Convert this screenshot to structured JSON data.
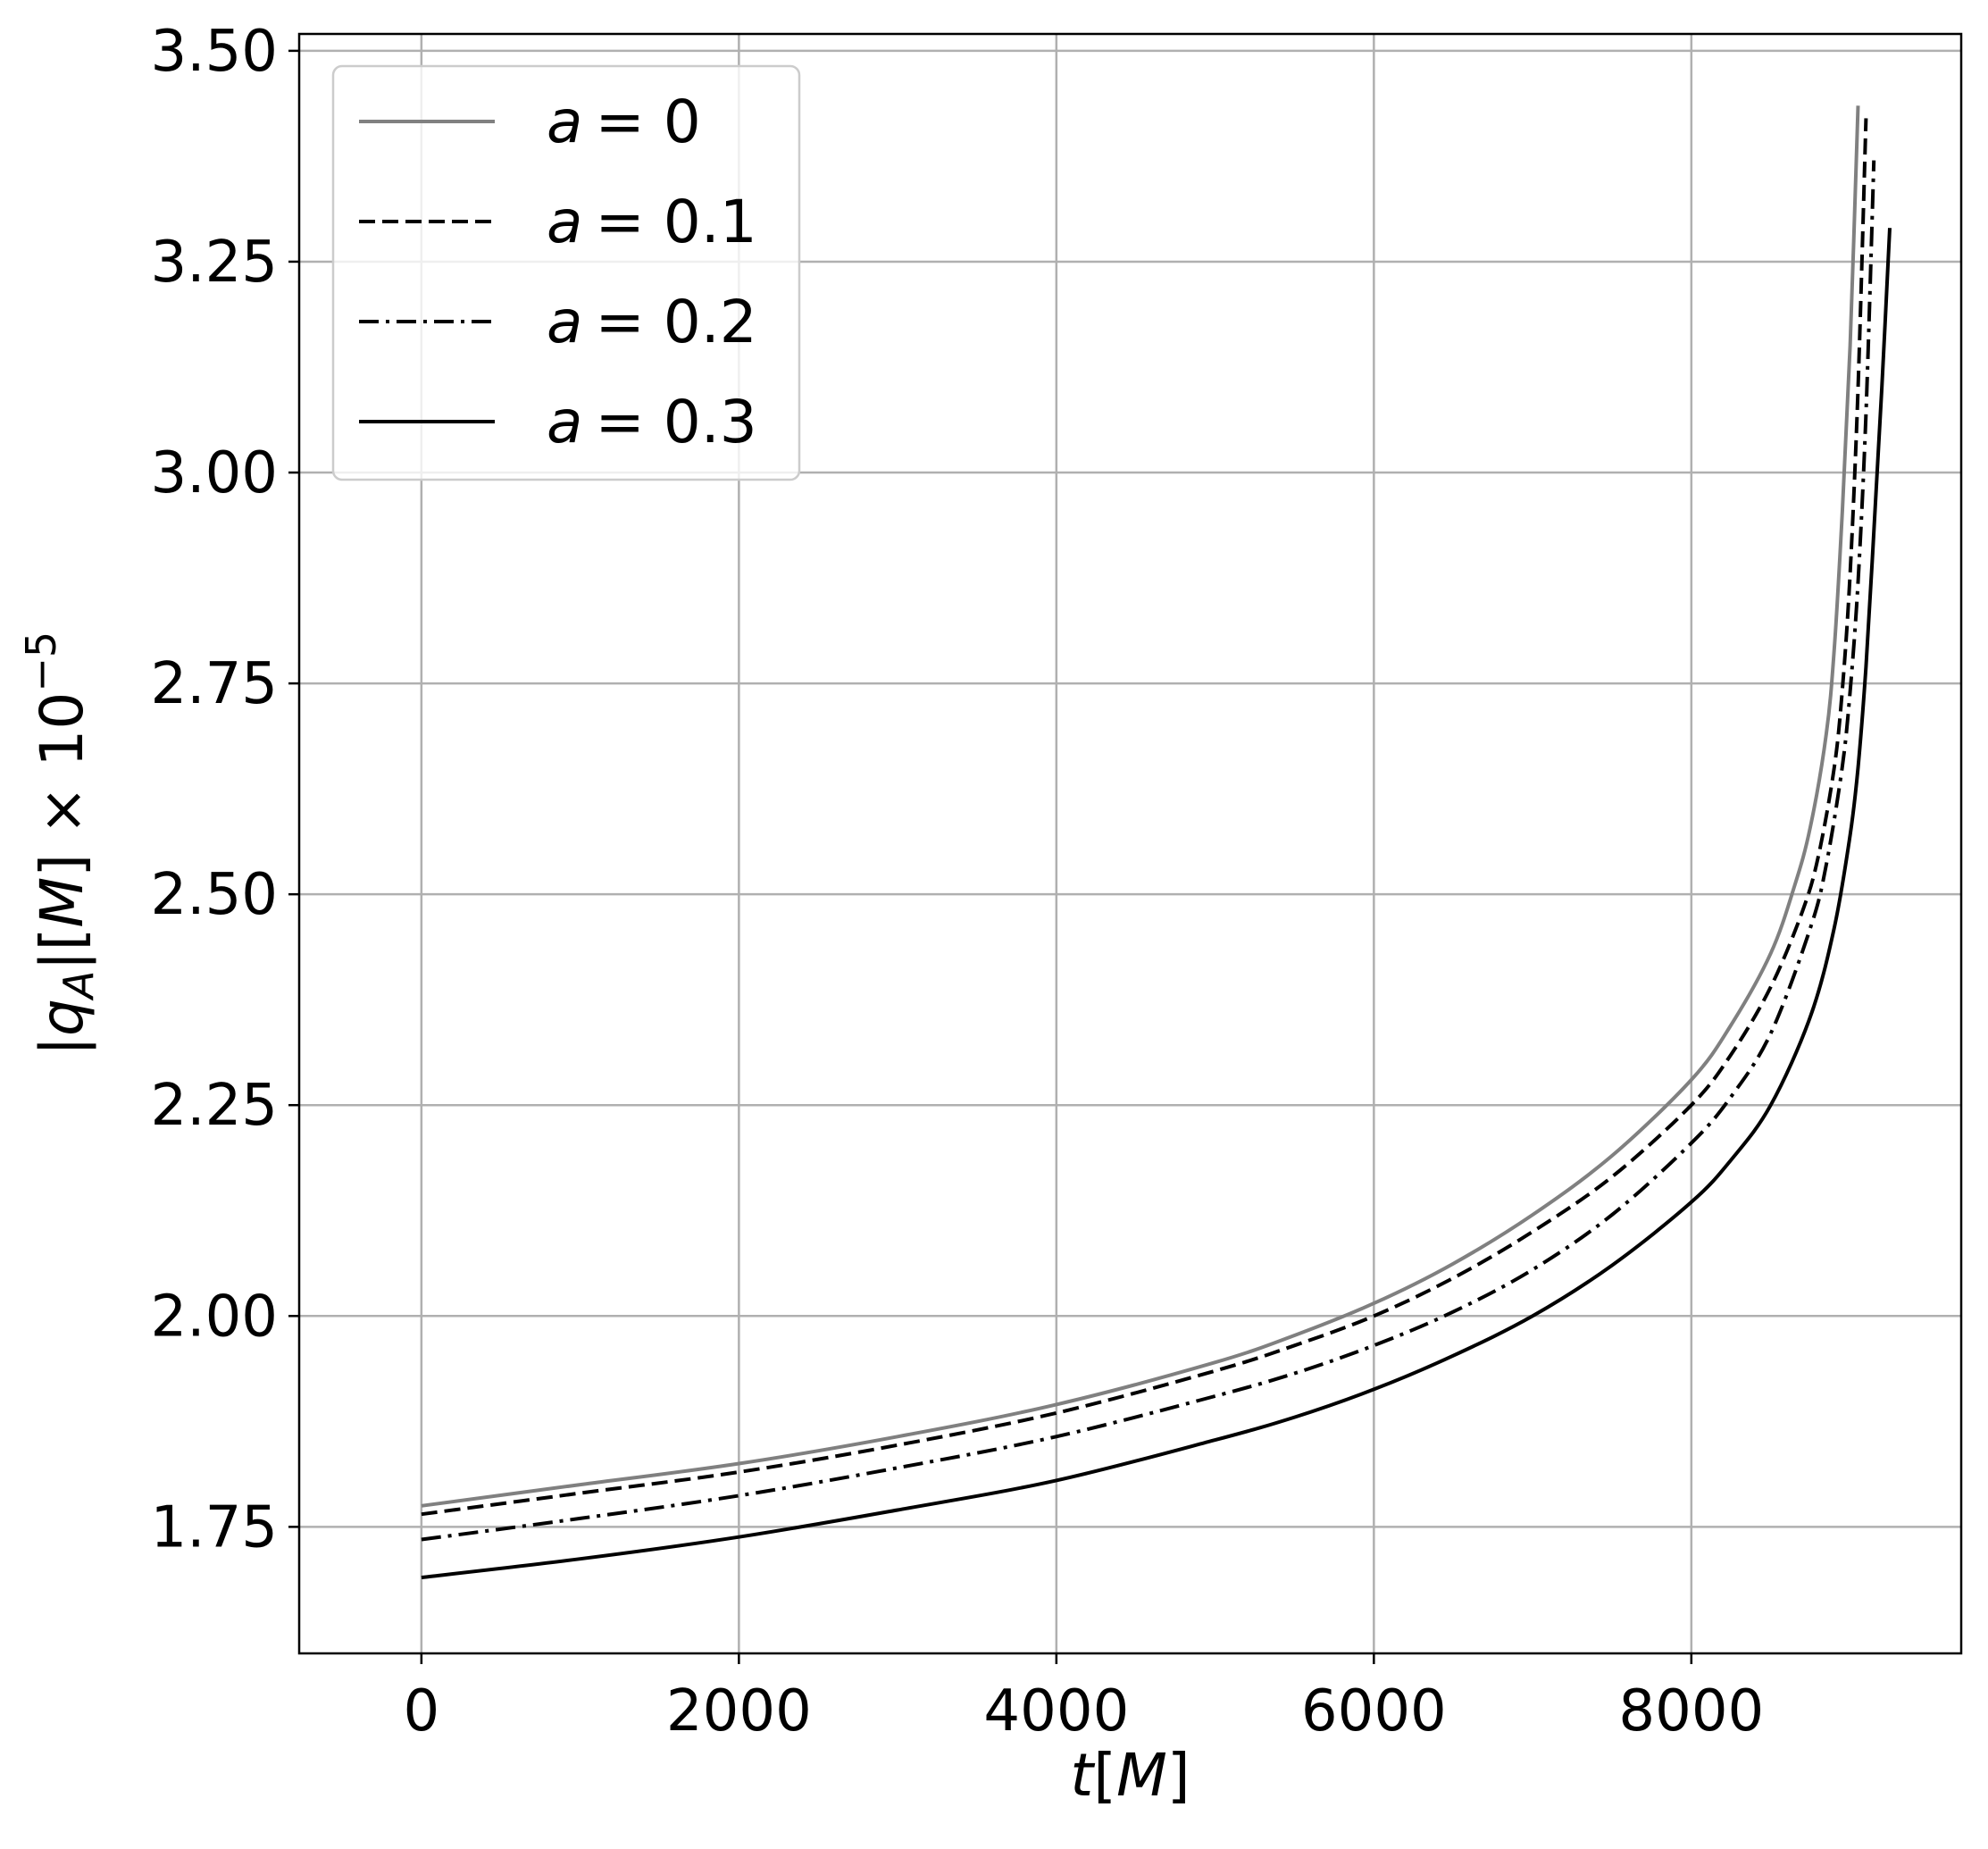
{
  "chart_data": {
    "type": "line",
    "xlabel": "t[M]",
    "ylabel": "|q_A|[M] × 10^−5",
    "xlim": [
      -770,
      9700
    ],
    "ylim": [
      1.6,
      3.52
    ],
    "xticks": [
      0,
      2000,
      4000,
      6000,
      8000
    ],
    "xtick_labels": [
      "0",
      "2000",
      "4000",
      "6000",
      "8000"
    ],
    "yticks": [
      1.75,
      2.0,
      2.25,
      2.5,
      2.75,
      3.0,
      3.25,
      3.5
    ],
    "ytick_labels": [
      "1.75",
      "2.00",
      "2.25",
      "2.50",
      "2.75",
      "3.00",
      "3.25",
      "3.50"
    ],
    "grid": true,
    "legend_position": "upper-left",
    "series": [
      {
        "name": "a = 0",
        "name_var": "a",
        "name_value": "= 0",
        "color": "#808080",
        "dash": "solid",
        "x": [
          0,
          1000,
          2000,
          3000,
          4000,
          5000,
          5500,
          6000,
          6500,
          7000,
          7500,
          8000,
          8250,
          8500,
          8650,
          8750,
          8850,
          8900,
          8950,
          9000,
          9050
        ],
        "y": [
          1.775,
          1.8,
          1.825,
          1.857,
          1.895,
          1.945,
          1.977,
          2.015,
          2.062,
          2.12,
          2.19,
          2.28,
          2.345,
          2.43,
          2.51,
          2.58,
          2.69,
          2.79,
          2.95,
          3.15,
          3.435
        ]
      },
      {
        "name": "a = 0.1",
        "name_var": "a",
        "name_value": "= 0.1",
        "color": "#000000",
        "dash": "dashed",
        "x": [
          0,
          1000,
          2000,
          3000,
          4000,
          5000,
          5500,
          6000,
          6500,
          7000,
          7500,
          8000,
          8250,
          8500,
          8700,
          8800,
          8900,
          8950,
          9000,
          9050,
          9100
        ],
        "y": [
          1.765,
          1.79,
          1.815,
          1.847,
          1.885,
          1.935,
          1.965,
          2.0,
          2.045,
          2.1,
          2.165,
          2.25,
          2.31,
          2.39,
          2.48,
          2.545,
          2.65,
          2.74,
          2.88,
          3.1,
          3.42
        ]
      },
      {
        "name": "a = 0.2",
        "name_var": "a",
        "name_value": "= 0.2",
        "color": "#000000",
        "dash": "dashdot",
        "x": [
          0,
          1000,
          2000,
          3000,
          4000,
          5000,
          5500,
          6000,
          6500,
          7000,
          7500,
          8000,
          8250,
          8500,
          8750,
          8850,
          8950,
          9000,
          9050,
          9100,
          9150
        ],
        "y": [
          1.735,
          1.76,
          1.787,
          1.82,
          1.857,
          1.905,
          1.932,
          1.965,
          2.005,
          2.055,
          2.12,
          2.205,
          2.26,
          2.335,
          2.46,
          2.535,
          2.65,
          2.74,
          2.87,
          3.07,
          3.37
        ]
      },
      {
        "name": "a = 0.3",
        "name_var": "a",
        "name_value": "= 0.3",
        "color": "#000000",
        "dash": "solid",
        "x": [
          0,
          1000,
          2000,
          3000,
          4000,
          5000,
          5500,
          6000,
          6500,
          7000,
          7500,
          8000,
          8250,
          8500,
          8750,
          8900,
          9000,
          9050,
          9100,
          9150,
          9200,
          9250
        ],
        "y": [
          1.69,
          1.712,
          1.738,
          1.77,
          1.805,
          1.853,
          1.88,
          1.913,
          1.953,
          2.0,
          2.06,
          2.135,
          2.185,
          2.25,
          2.355,
          2.46,
          2.57,
          2.65,
          2.77,
          2.93,
          3.1,
          3.29
        ]
      }
    ]
  }
}
